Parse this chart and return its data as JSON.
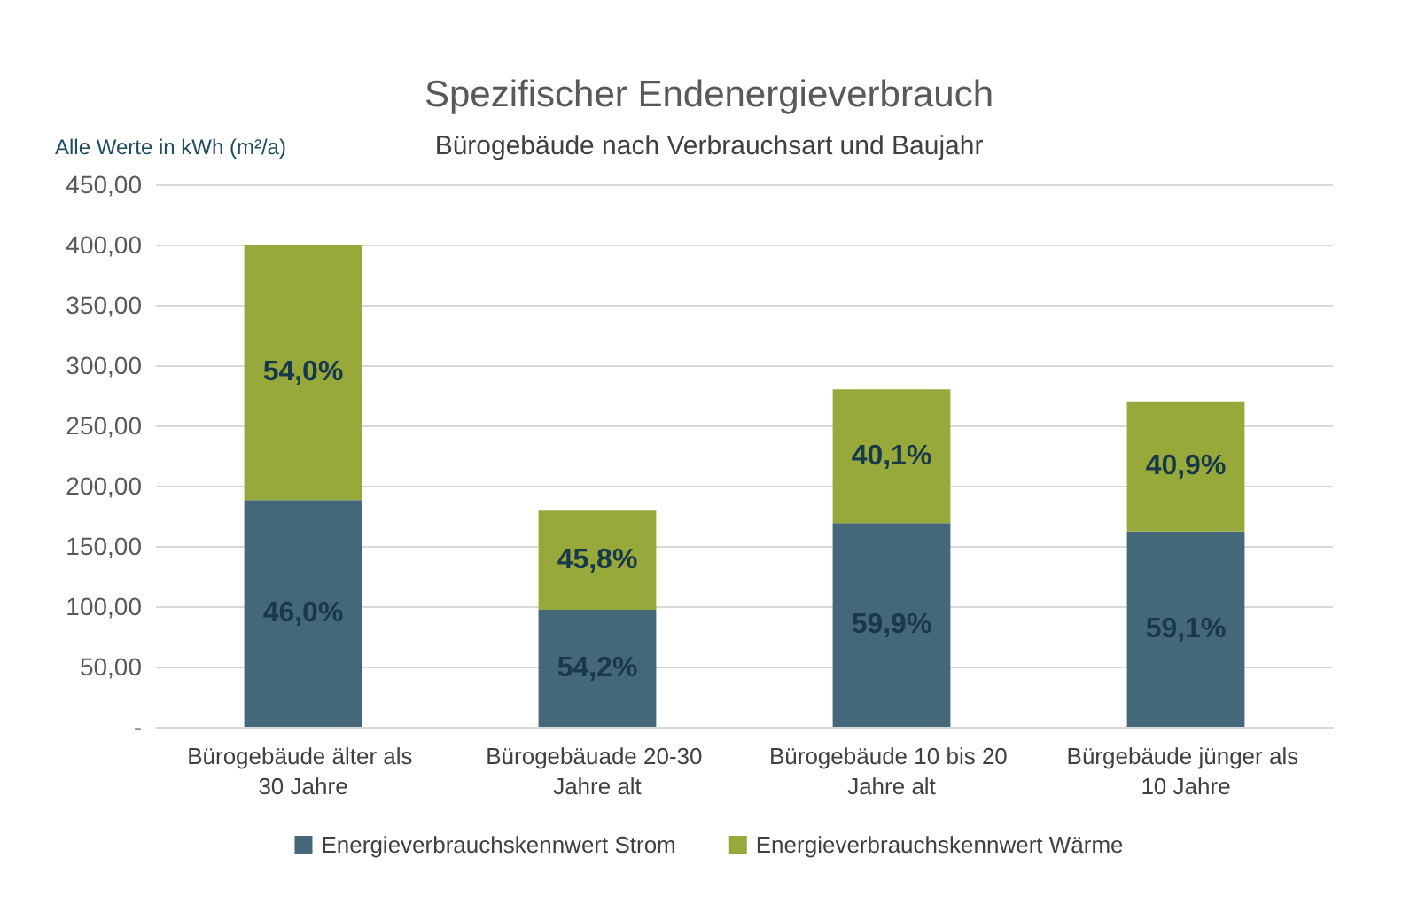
{
  "chart_data": {
    "type": "bar",
    "title": "Spezifischer Endenergieverbrauch",
    "subtitle": "Bürogebäude nach Verbrauchsart und Baujahr",
    "ylabel": "Alle Werte in kWh (m²/a)",
    "categories": [
      "Bürogebäude älter als 30 Jahre",
      "Bürogebäuade 20-30 Jahre alt",
      "Bürogebäude 10 bis 20 Jahre alt",
      "Bürgebäude jünger als 10 Jahre"
    ],
    "stacked": true,
    "series": [
      {
        "name": "Energieverbrauchskennwert Strom",
        "color": "#44687a",
        "values": [
          188,
          97,
          169,
          162
        ]
      },
      {
        "name": "Energieverbrauchskennwert Wärme",
        "color": "#97a93a",
        "values": [
          212,
          83,
          111,
          108
        ]
      }
    ],
    "annotations": [
      "46,0%",
      "54,2%",
      "59,9%",
      "59,1%",
      "54,0%",
      "45,8%",
      "40,1%",
      "40,9%"
    ],
    "ylim": [
      0,
      450
    ],
    "yticks": [
      {
        "value": 0,
        "label": "-"
      },
      {
        "value": 50,
        "label": "50,00"
      },
      {
        "value": 100,
        "label": "100,00"
      },
      {
        "value": 150,
        "label": "150,00"
      },
      {
        "value": 200,
        "label": "200,00"
      },
      {
        "value": 250,
        "label": "250,00"
      },
      {
        "value": 300,
        "label": "300,00"
      },
      {
        "value": 350,
        "label": "350,00"
      },
      {
        "value": 400,
        "label": "400,00"
      },
      {
        "value": 450,
        "label": "450,00"
      }
    ],
    "grid": "y",
    "legend": "bottom"
  }
}
